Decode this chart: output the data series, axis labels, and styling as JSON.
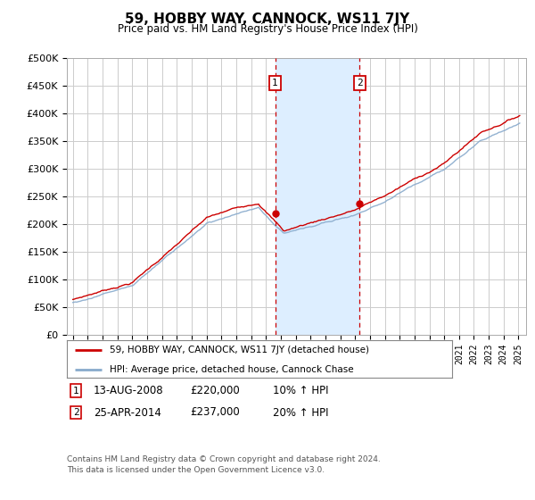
{
  "title": "59, HOBBY WAY, CANNOCK, WS11 7JY",
  "subtitle": "Price paid vs. HM Land Registry's House Price Index (HPI)",
  "ylabel_ticks": [
    "£0",
    "£50K",
    "£100K",
    "£150K",
    "£200K",
    "£250K",
    "£300K",
    "£350K",
    "£400K",
    "£450K",
    "£500K"
  ],
  "ylim": [
    0,
    500000
  ],
  "xlim_start": 1994.6,
  "xlim_end": 2025.5,
  "sale1_date": 2008.617,
  "sale1_price": 220000,
  "sale1_label": "1",
  "sale1_text": "13-AUG-2008",
  "sale1_pct": "10% ↑ HPI",
  "sale2_date": 2014.317,
  "sale2_price": 237000,
  "sale2_label": "2",
  "sale2_text": "25-APR-2014",
  "sale2_pct": "20% ↑ HPI",
  "line_color_property": "#cc0000",
  "line_color_hpi": "#88aacc",
  "marker_box_color": "#cc0000",
  "shade_color": "#ddeeff",
  "legend_label_property": "59, HOBBY WAY, CANNOCK, WS11 7JY (detached house)",
  "legend_label_hpi": "HPI: Average price, detached house, Cannock Chase",
  "footer1": "Contains HM Land Registry data © Crown copyright and database right 2024.",
  "footer2": "This data is licensed under the Open Government Licence v3.0.",
  "bg_color": "#ffffff",
  "grid_color": "#cccccc"
}
